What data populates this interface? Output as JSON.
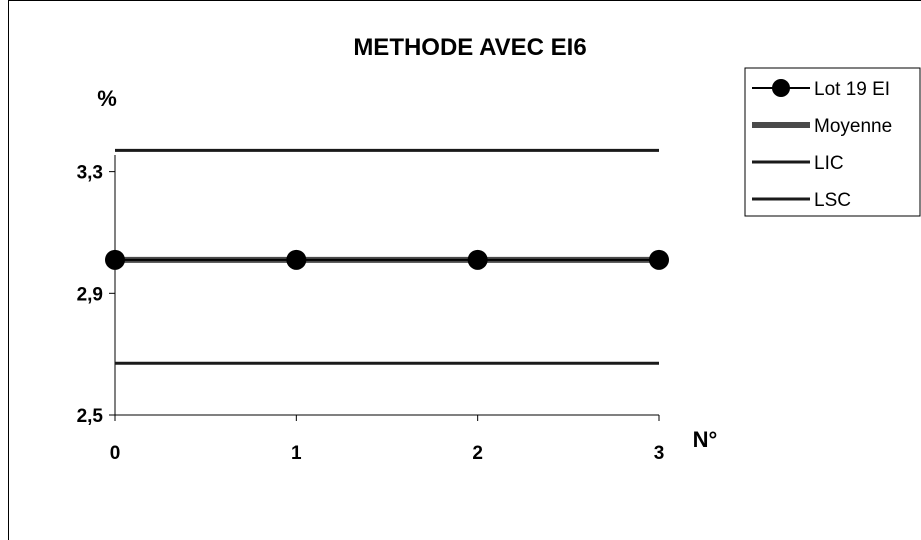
{
  "chart_data": {
    "type": "line",
    "title": "METHODE AVEC EI6",
    "ylabel": "%",
    "xlabel": "N°",
    "x": [
      0,
      1,
      2,
      3
    ],
    "x_tick_labels": [
      "0",
      "1",
      "2",
      "3"
    ],
    "y_ticks": [
      2.5,
      2.9,
      3.3
    ],
    "y_tick_labels": [
      "2,5",
      "2,9",
      "3,3"
    ],
    "ylim": [
      2.5,
      3.45
    ],
    "xlim": [
      0,
      3
    ],
    "grid": false,
    "legend_position": "top-right",
    "series": [
      {
        "name": "Lot 19 EI",
        "values": [
          3.01,
          3.01,
          3.01,
          3.01
        ],
        "color": "#000000",
        "marker": "circle"
      },
      {
        "name": "Moyenne",
        "values": [
          3.01,
          3.01,
          3.01,
          3.01
        ],
        "color": "#4a4a4a"
      },
      {
        "name": "LIC",
        "values": [
          2.67,
          2.67,
          2.67,
          2.67
        ],
        "color": "#1a1a1a"
      },
      {
        "name": "LSC",
        "values": [
          3.37,
          3.37,
          3.37,
          3.37
        ],
        "color": "#1a1a1a"
      }
    ]
  }
}
